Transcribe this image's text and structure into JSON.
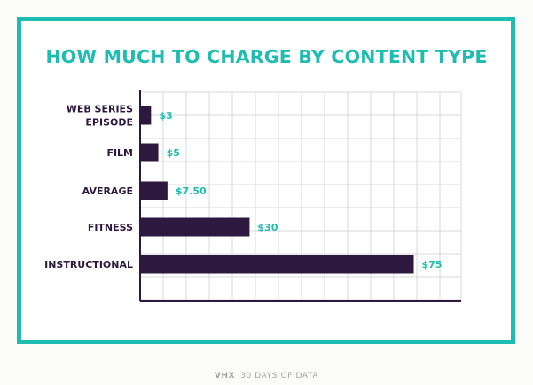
{
  "colors": {
    "accent": "#1fbcb1",
    "bar": "#2d1940",
    "grid": "#d9d9d9",
    "footer": "#a3a3a3"
  },
  "chart_data": {
    "type": "bar",
    "orientation": "horizontal",
    "title": "HOW MUCH TO CHARGE BY CONTENT TYPE",
    "categories": [
      "WEB SERIES EPISODE",
      "FILM",
      "AVERAGE",
      "FITNESS",
      "INSTRUCTIONAL"
    ],
    "category_lines": [
      [
        "WEB SERIES",
        "EPISODE"
      ],
      [
        "FILM"
      ],
      [
        "AVERAGE"
      ],
      [
        "FITNESS"
      ],
      [
        "INSTRUCTIONAL"
      ]
    ],
    "values": [
      3,
      5,
      7.5,
      30,
      75
    ],
    "value_labels": [
      "$3",
      "$5",
      "$7.50",
      "$30",
      "$75"
    ],
    "xlabel": "",
    "ylabel": "",
    "xlim": [
      0,
      88
    ],
    "grid": true,
    "legend": "none"
  },
  "footer": {
    "brand": "VHX",
    "text": "30 DAYS OF DATA"
  }
}
